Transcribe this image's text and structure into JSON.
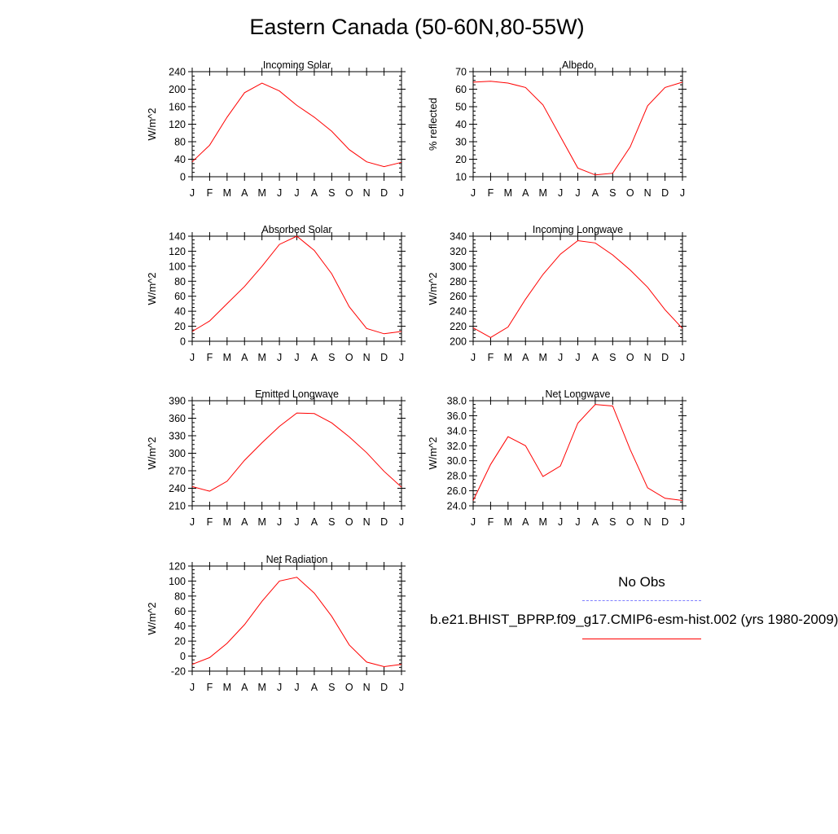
{
  "title": "Eastern Canada (50-60N,80-55W)",
  "legend": {
    "obs_label": "No Obs",
    "model_label": "b.e21.BHIST_BPRP.f09_g17.CMIP6-esm-hist.002 (yrs 1980-2009)",
    "obs_color": "#8080ff",
    "model_color": "#ff0000"
  },
  "chart_data": [
    {
      "type": "line",
      "title": "Incoming Solar",
      "ylabel": "W/m^2",
      "x": [
        "J",
        "F",
        "M",
        "A",
        "M",
        "J",
        "J",
        "A",
        "S",
        "O",
        "N",
        "D",
        "J"
      ],
      "ylim": [
        0,
        240
      ],
      "yticks": [
        0,
        40,
        80,
        120,
        160,
        200,
        240
      ],
      "ytick_labels": [
        "0",
        "40",
        "80",
        "120",
        "160",
        "200",
        "240"
      ],
      "series": [
        {
          "values": [
            34,
            72,
            136,
            192,
            214,
            196,
            163,
            136,
            104,
            62,
            34,
            23,
            33
          ]
        }
      ]
    },
    {
      "type": "line",
      "title": "Albedo",
      "ylabel": "% reflected",
      "x": [
        "J",
        "F",
        "M",
        "A",
        "M",
        "J",
        "J",
        "A",
        "S",
        "O",
        "N",
        "D",
        "J"
      ],
      "ylim": [
        10,
        70
      ],
      "yticks": [
        10,
        20,
        30,
        40,
        50,
        60,
        70
      ],
      "ytick_labels": [
        "10",
        "20",
        "30",
        "40",
        "50",
        "60",
        "70"
      ],
      "series": [
        {
          "values": [
            64,
            64.5,
            63.5,
            61,
            51,
            33,
            15,
            11,
            12,
            27,
            50.5,
            61,
            64
          ]
        }
      ]
    },
    {
      "type": "line",
      "title": "Absorbed Solar",
      "ylabel": "W/m^2",
      "x": [
        "J",
        "F",
        "M",
        "A",
        "M",
        "J",
        "J",
        "A",
        "S",
        "O",
        "N",
        "D",
        "J"
      ],
      "ylim": [
        0,
        140
      ],
      "yticks": [
        0,
        20,
        40,
        60,
        80,
        100,
        120,
        140
      ],
      "ytick_labels": [
        "0",
        "20",
        "40",
        "60",
        "80",
        "100",
        "120",
        "140"
      ],
      "series": [
        {
          "values": [
            13,
            27,
            50,
            73,
            100,
            129,
            140,
            121,
            90,
            46,
            17,
            10,
            13
          ]
        }
      ]
    },
    {
      "type": "line",
      "title": "Incoming Longwave",
      "ylabel": "W/m^2",
      "x": [
        "J",
        "F",
        "M",
        "A",
        "M",
        "J",
        "J",
        "A",
        "S",
        "O",
        "N",
        "D",
        "J"
      ],
      "ylim": [
        200,
        340
      ],
      "yticks": [
        200,
        220,
        240,
        260,
        280,
        300,
        320,
        340
      ],
      "ytick_labels": [
        "200",
        "220",
        "240",
        "260",
        "280",
        "300",
        "320",
        "340"
      ],
      "series": [
        {
          "values": [
            218,
            205,
            219,
            256,
            289,
            316,
            334,
            331,
            315,
            295,
            272,
            242,
            217
          ]
        }
      ]
    },
    {
      "type": "line",
      "title": "Emitted Longwave",
      "ylabel": "W/m^2",
      "x": [
        "J",
        "F",
        "M",
        "A",
        "M",
        "J",
        "J",
        "A",
        "S",
        "O",
        "N",
        "D",
        "J"
      ],
      "ylim": [
        210,
        390
      ],
      "yticks": [
        210,
        240,
        270,
        300,
        330,
        360,
        390
      ],
      "ytick_labels": [
        "210",
        "240",
        "270",
        "300",
        "330",
        "360",
        "390"
      ],
      "series": [
        {
          "values": [
            243,
            235,
            252,
            288,
            318,
            346,
            369,
            368,
            352,
            328,
            301,
            269,
            242
          ]
        }
      ]
    },
    {
      "type": "line",
      "title": "Net Longwave",
      "ylabel": "W/m^2",
      "x": [
        "J",
        "F",
        "M",
        "A",
        "M",
        "J",
        "J",
        "A",
        "S",
        "O",
        "N",
        "D",
        "J"
      ],
      "ylim": [
        24,
        38
      ],
      "yticks": [
        24,
        26,
        28,
        30,
        32,
        34,
        36,
        38
      ],
      "ytick_labels": [
        "24.0",
        "26.0",
        "28.0",
        "30.0",
        "32.0",
        "34.0",
        "36.0",
        "38.0"
      ],
      "series": [
        {
          "values": [
            24.7,
            29.5,
            33.2,
            32,
            27.9,
            29.3,
            35,
            37.5,
            37.3,
            31.5,
            26.4,
            25,
            24.7
          ]
        }
      ]
    },
    {
      "type": "line",
      "title": "Net Radiation",
      "ylabel": "W/m^2",
      "x": [
        "J",
        "F",
        "M",
        "A",
        "M",
        "J",
        "J",
        "A",
        "S",
        "O",
        "N",
        "D",
        "J"
      ],
      "ylim": [
        -20,
        120
      ],
      "yticks": [
        -20,
        0,
        20,
        40,
        60,
        80,
        100,
        120
      ],
      "ytick_labels": [
        "-20",
        "0",
        "20",
        "40",
        "60",
        "80",
        "100",
        "120"
      ],
      "series": [
        {
          "values": [
            -11,
            -2,
            17,
            42,
            73,
            100,
            105,
            84,
            53,
            15,
            -8,
            -14,
            -11
          ]
        }
      ]
    }
  ]
}
